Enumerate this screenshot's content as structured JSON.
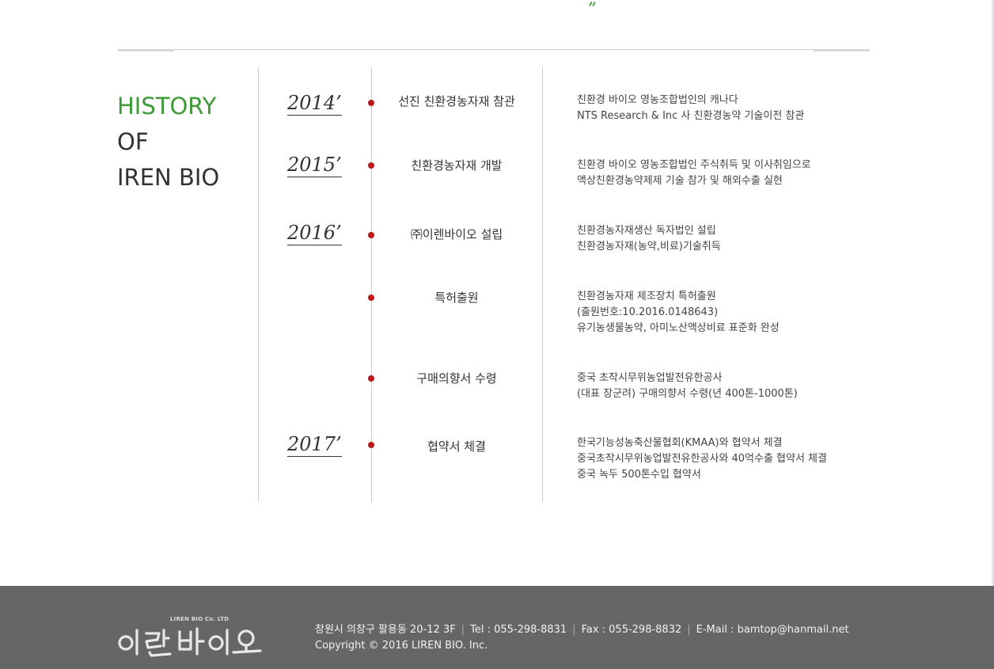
{
  "colors": {
    "accent_green": "#3e9a36",
    "dot_red": "#c01818",
    "footer_bg": "#666666"
  },
  "decor": {
    "quote_glyph": "„"
  },
  "history_title": {
    "line1": "HISTORY",
    "line2": "OF",
    "line3": "IREN BIO"
  },
  "years": {
    "y2014": "2014’",
    "y2015": "2015’",
    "y2016": "2016’",
    "y2017": "2017’"
  },
  "events": [
    {
      "title": "선진 친환경농자재 참관",
      "desc": [
        "친환경 바이오 영농조합법인의 캐나다",
        "NTS Research & Inc 사 친환경농약 기술이전 참관"
      ]
    },
    {
      "title": "친환경농자재 개발",
      "desc": [
        "친환경 바이오 영농조합법인 주식취득 및  이사취임으로",
        "액상친환경농약제제 기술 참가  및  해외수출 실현"
      ]
    },
    {
      "title": "㈜이렌바이오 설립",
      "desc": [
        "친환경농자재생산 독자법인 설립",
        "친환경농자재(농약,비료)기술취득"
      ]
    },
    {
      "title": "특허출원",
      "desc": [
        "친환경농자재 제조장치 특허출원",
        "(출원번호:10.2016.0148643)",
        "유기농생물농약, 아미노산액상비료 표준화 완성"
      ]
    },
    {
      "title": "구매의향서 수령",
      "desc": [
        "중국 초작시무위농업발전유한공사",
        "(대표 장군려) 구매의향서  수령(년 400톤-1000톤)"
      ]
    },
    {
      "title": "협약서 체결",
      "desc": [
        "한국기능성농축산물협회(KMAA)와 협약서 체결",
        "중국초작시무위농업발전유한공사와 40억수출 협약서 체결",
        "중국 녹두 500톤수입 협약서"
      ]
    }
  ],
  "footer": {
    "logo_small": "LIREN BIO Co. LTD",
    "logo_script": "이렌바이오",
    "address": "창원시 의창구 팔용동 20-12 3F",
    "tel": "Tel : 055-298-8831",
    "fax": "Fax : 055-298-8832",
    "email": "E-Mail : bamtop@hanmail.net",
    "separator": "|",
    "copyright": "Copyright © 2016 LIREN BIO. Inc."
  }
}
